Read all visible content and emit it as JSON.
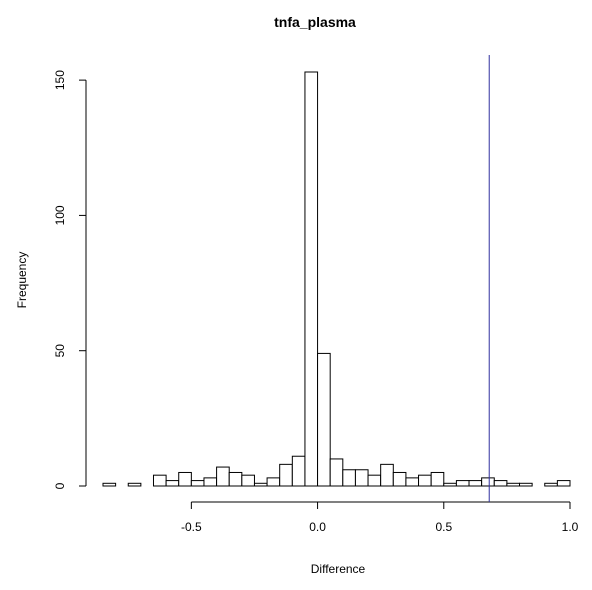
{
  "chart_data": {
    "type": "bar",
    "title": "tnfa_plasma",
    "xlabel": "Difference",
    "ylabel": "Frequency",
    "xlim": [
      -0.85,
      1.0
    ],
    "ylim": [
      0,
      153
    ],
    "x_ticks": [
      "-0.5",
      "0.0",
      "0.5",
      "1.0"
    ],
    "y_ticks": [
      "0",
      "50",
      "100",
      "150"
    ],
    "bin_width": 0.05,
    "bins_start": [
      -0.85,
      -0.8,
      -0.75,
      -0.7,
      -0.65,
      -0.6,
      -0.55,
      -0.5,
      -0.45,
      -0.4,
      -0.35,
      -0.3,
      -0.25,
      -0.2,
      -0.15,
      -0.1,
      -0.05,
      0.0,
      0.05,
      0.1,
      0.15,
      0.2,
      0.25,
      0.3,
      0.35,
      0.4,
      0.45,
      0.5,
      0.55,
      0.6,
      0.65,
      0.7,
      0.75,
      0.8,
      0.85,
      0.9,
      0.95
    ],
    "values": [
      1,
      0,
      1,
      0,
      4,
      2,
      5,
      2,
      3,
      7,
      5,
      4,
      1,
      3,
      8,
      11,
      153,
      49,
      10,
      6,
      6,
      4,
      8,
      5,
      3,
      4,
      5,
      1,
      2,
      2,
      3,
      2,
      1,
      1,
      0,
      1,
      2
    ],
    "reference_line": {
      "x": 0.68,
      "color": "#3030a0"
    },
    "bar_fill": "#ffffff",
    "bar_stroke": "#000000"
  }
}
